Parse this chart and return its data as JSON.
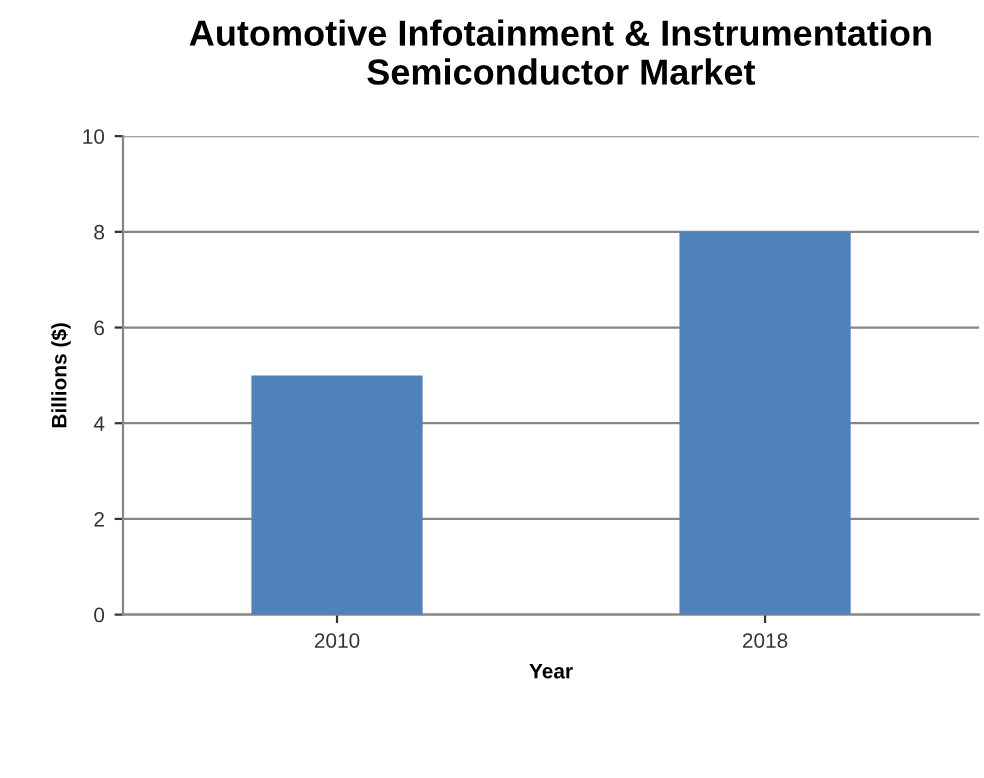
{
  "chart_data": {
    "type": "bar",
    "title": "Automotive Infotainment & Instrumentation\nSemiconductor Market",
    "xlabel": "Year",
    "ylabel": "Billions ($)",
    "categories": [
      "2010",
      "2018"
    ],
    "series": [
      {
        "color": "#4f81bd",
        "values": [
          5,
          8
        ]
      }
    ],
    "ylim": [
      0,
      10
    ],
    "yticks": [
      0,
      2,
      4,
      6,
      8,
      10
    ],
    "grid": "y",
    "legend": false
  }
}
